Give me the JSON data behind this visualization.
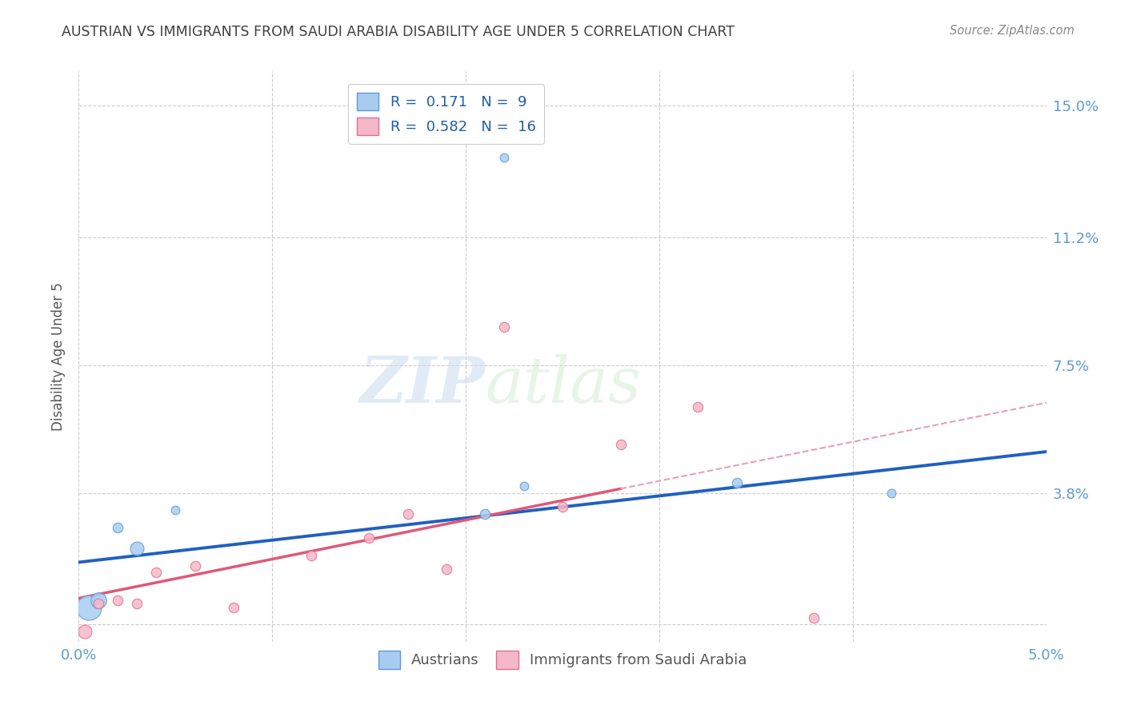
{
  "title": "AUSTRIAN VS IMMIGRANTS FROM SAUDI ARABIA DISABILITY AGE UNDER 5 CORRELATION CHART",
  "source": "Source: ZipAtlas.com",
  "ylabel": "Disability Age Under 5",
  "watermark": "ZIPatlas",
  "xlim": [
    0.0,
    0.05
  ],
  "ylim": [
    -0.005,
    0.16
  ],
  "xticks": [
    0.0,
    0.01,
    0.02,
    0.03,
    0.04,
    0.05
  ],
  "xtick_labels": [
    "0.0%",
    "",
    "",
    "",
    "",
    "5.0%"
  ],
  "ytick_positions": [
    0.0,
    0.038,
    0.075,
    0.112,
    0.15
  ],
  "ytick_labels": [
    "",
    "3.8%",
    "7.5%",
    "11.2%",
    "15.0%"
  ],
  "austrians_x": [
    0.0005,
    0.001,
    0.002,
    0.003,
    0.005,
    0.021,
    0.023,
    0.034,
    0.042
  ],
  "austrians_y": [
    0.005,
    0.007,
    0.028,
    0.022,
    0.033,
    0.032,
    0.04,
    0.041,
    0.038
  ],
  "austrians_sizes": [
    500,
    200,
    80,
    150,
    60,
    80,
    60,
    80,
    60
  ],
  "austrians_outlier_x": [
    0.022
  ],
  "austrians_outlier_y": [
    0.135
  ],
  "austrians_outlier_sizes": [
    60
  ],
  "saudi_x": [
    0.0003,
    0.001,
    0.002,
    0.003,
    0.004,
    0.006,
    0.008,
    0.012,
    0.015,
    0.017,
    0.019,
    0.022,
    0.025,
    0.028,
    0.032,
    0.038
  ],
  "saudi_y": [
    -0.002,
    0.006,
    0.007,
    0.006,
    0.015,
    0.017,
    0.005,
    0.02,
    0.025,
    0.032,
    0.016,
    0.086,
    0.034,
    0.052,
    0.063,
    0.002
  ],
  "saudi_sizes": [
    150,
    80,
    80,
    80,
    80,
    80,
    80,
    80,
    80,
    80,
    80,
    80,
    80,
    80,
    80,
    80
  ],
  "austrians_R": 0.171,
  "austrians_N": 9,
  "saudi_R": 0.582,
  "saudi_N": 16,
  "austrians_color": "#A8CCF0",
  "austrians_edge_color": "#5B9BD5",
  "saudi_color": "#F4B8C8",
  "saudi_edge_color": "#E07090",
  "trend_blue": "#2060C0",
  "trend_pink": "#E05878",
  "trend_pink_dashed": "#E8A0B0",
  "background_color": "#FFFFFF",
  "grid_color": "#CCCCCC",
  "title_color": "#404040",
  "axis_label_color": "#5B9BD5",
  "watermark_color": "#C8DCF0"
}
